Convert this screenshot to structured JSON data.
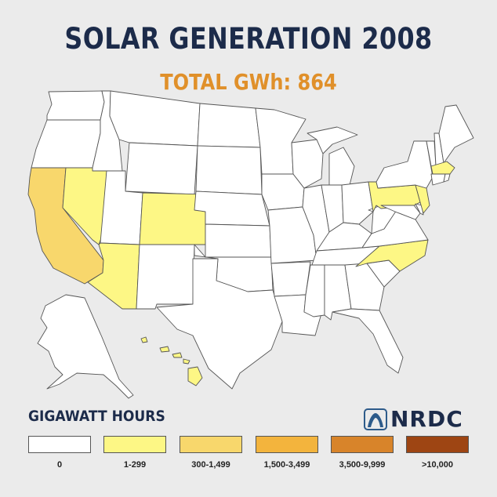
{
  "title": "SOLAR GENERATION 2008",
  "subtitle": "TOTAL GWh: 864",
  "legend": {
    "title": "GIGAWATT HOURS",
    "items": [
      {
        "label": "0",
        "color": "#ffffff"
      },
      {
        "label": "1-299",
        "color": "#fdf785"
      },
      {
        "label": "300-1,499",
        "color": "#f8d76c"
      },
      {
        "label": "1,500-3,499",
        "color": "#f3b43d"
      },
      {
        "label": "3,500-9,999",
        "color": "#d8842a"
      },
      {
        "label": ">10,000",
        "color": "#9e4513"
      }
    ]
  },
  "logo": {
    "text": "NRDC"
  },
  "map_colors": {
    "California": "#f8d76c",
    "Nevada": "#fdf785",
    "Arizona": "#fdf785",
    "Colorado": "#fdf785",
    "Pennsylvania": "#fdf785",
    "New Jersey": "#fdf785",
    "Massachusetts": "#fdf785",
    "North Carolina": "#fdf785",
    "Hawaii": "#fdf785",
    "other": "#ffffff"
  }
}
